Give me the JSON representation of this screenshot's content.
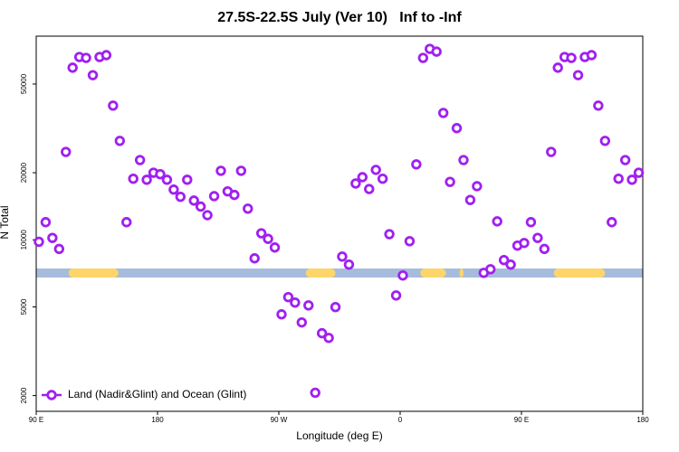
{
  "chart_data": {
    "type": "scatter",
    "title": "27.5S-22.5S July (Ver 10)   Inf to -Inf",
    "x_label": "Longitude (deg E)",
    "y_label": "N Total",
    "xlim": [
      90,
      540
    ],
    "xticks": [
      {
        "value": 90,
        "label": "90 E"
      },
      {
        "value": 180,
        "label": "180"
      },
      {
        "value": 270,
        "label": "90 W"
      },
      {
        "value": 360,
        "label": "0"
      },
      {
        "value": 450,
        "label": "90 E"
      },
      {
        "value": 540,
        "label": "180"
      }
    ],
    "ylim": [
      1700,
      82000
    ],
    "y_log": true,
    "yticks": [
      2000,
      5000,
      10000,
      20000,
      50000
    ],
    "legend_position": "lower-left",
    "surface_strip": {
      "ocean_color": "#a7bcdc",
      "land_color": "#fdd56b",
      "land_ranges": [
        [
          114,
          151
        ],
        [
          290,
          312
        ],
        [
          375,
          394
        ],
        [
          404,
          407
        ],
        [
          474,
          512
        ]
      ]
    },
    "series": [
      {
        "name": "Land (Nadir&Glint) and Ocean (Glint)",
        "color": "#a020f0",
        "x": [
          92,
          97,
          102,
          107,
          112,
          117,
          122,
          127,
          132,
          137,
          142,
          147,
          152,
          157,
          162,
          167,
          172,
          177,
          182,
          187,
          192,
          197,
          202,
          207,
          212,
          217,
          222,
          227,
          232,
          237,
          242,
          247,
          252,
          257,
          262,
          267,
          272,
          277,
          282,
          287,
          292,
          297,
          302,
          307,
          312,
          317,
          322,
          327,
          332,
          337,
          342,
          347,
          352,
          357,
          362,
          367,
          372,
          377,
          382,
          387,
          392,
          397,
          402,
          407,
          412,
          417,
          422,
          427,
          432,
          437,
          442,
          447,
          452,
          457,
          462,
          467,
          472,
          477,
          482,
          487,
          492,
          497,
          502,
          507,
          512,
          517,
          522,
          527,
          532,
          537
        ],
        "values": [
          9800,
          12000,
          10200,
          9100,
          24800,
          59200,
          66100,
          65500,
          54800,
          66100,
          67400,
          40000,
          27800,
          12000,
          18800,
          22800,
          18600,
          20000,
          19700,
          18600,
          16800,
          15600,
          18600,
          15000,
          14100,
          12900,
          15700,
          20400,
          16500,
          15900,
          20400,
          13800,
          8260,
          10700,
          10100,
          9240,
          4630,
          5530,
          5230,
          4260,
          5080,
          2060,
          3810,
          3630,
          4990,
          8410,
          7740,
          17900,
          19100,
          16900,
          20600,
          18800,
          10600,
          5630,
          6920,
          9860,
          21800,
          65500,
          71900,
          69900,
          37100,
          18200,
          31700,
          22800,
          15100,
          17400,
          7110,
          7380,
          12100,
          8110,
          7740,
          9420,
          9680,
          12000,
          10200,
          9100,
          24800,
          59200,
          66100,
          65500,
          54800,
          66100,
          67400,
          40000,
          27800,
          12000,
          18800,
          22800,
          18600,
          20000
        ]
      }
    ]
  }
}
